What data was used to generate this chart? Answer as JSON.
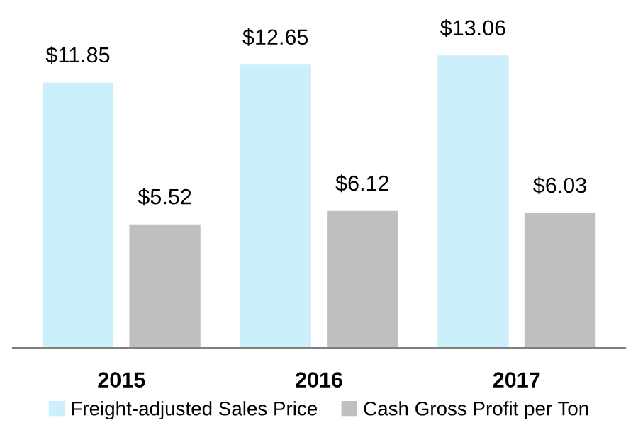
{
  "chart_data": {
    "type": "bar",
    "categories": [
      "2015",
      "2016",
      "2017"
    ],
    "series": [
      {
        "name": "Freight-adjusted Sales Price",
        "color": "#cceffc",
        "values": [
          11.85,
          12.65,
          13.06
        ],
        "value_labels": [
          "$11.85",
          "$12.65",
          "$13.06"
        ]
      },
      {
        "name": "Cash Gross Profit per Ton",
        "color": "#bfbfbf",
        "values": [
          5.52,
          6.12,
          6.03
        ],
        "value_labels": [
          "$5.52",
          "$6.12",
          "$6.03"
        ]
      }
    ],
    "legend": "bottom",
    "grid": false
  }
}
